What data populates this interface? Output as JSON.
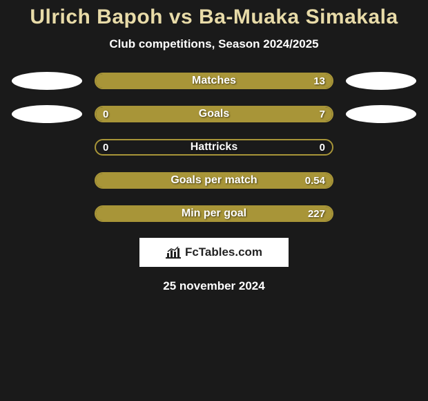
{
  "title": "Ulrich Bapoh vs Ba-Muaka Simakala",
  "subtitle": "Club competitions, Season 2024/2025",
  "date": "25 november 2024",
  "logo_text": "FcTables.com",
  "colors": {
    "background": "#1a1a1a",
    "title": "#e8dba8",
    "bar_border": "#a89538",
    "bar_fill": "#a89538",
    "text": "#ffffff",
    "ellipse": "#ffffff",
    "logo_bg": "#ffffff",
    "logo_text": "#222222"
  },
  "rows": [
    {
      "label": "Matches",
      "left_val": "",
      "right_val": "13",
      "left_pct": 0,
      "right_pct": 100,
      "left_ellipse": true,
      "right_ellipse": true
    },
    {
      "label": "Goals",
      "left_val": "0",
      "right_val": "7",
      "left_pct": 8,
      "right_pct": 92,
      "left_ellipse": true,
      "right_ellipse": true
    },
    {
      "label": "Hattricks",
      "left_val": "0",
      "right_val": "0",
      "left_pct": 0,
      "right_pct": 0,
      "left_ellipse": false,
      "right_ellipse": false
    },
    {
      "label": "Goals per match",
      "left_val": "",
      "right_val": "0.54",
      "left_pct": 0,
      "right_pct": 100,
      "left_ellipse": false,
      "right_ellipse": false
    },
    {
      "label": "Min per goal",
      "left_val": "",
      "right_val": "227",
      "left_pct": 0,
      "right_pct": 100,
      "left_ellipse": false,
      "right_ellipse": false
    }
  ]
}
